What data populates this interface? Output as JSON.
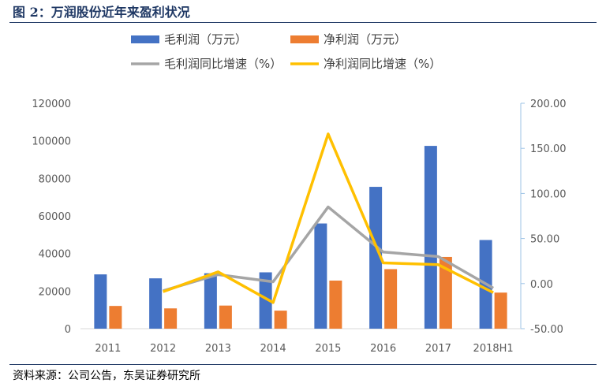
{
  "figure_title": "图 2：万润股份近年来盈利状况",
  "source_note": "资料来源：公司公告，东吴证券研究所",
  "chart_data": {
    "type": "bar",
    "categories": [
      "2011",
      "2012",
      "2013",
      "2014",
      "2015",
      "2016",
      "2017",
      "2018H1"
    ],
    "series": [
      {
        "name": "毛利润（万元）",
        "type": "bar",
        "axis": "left",
        "color": "#4472c4",
        "values": [
          28900,
          26800,
          29500,
          30000,
          56000,
          75500,
          97300,
          47200
        ]
      },
      {
        "name": "净利润（万元）",
        "type": "bar",
        "axis": "left",
        "color": "#ed7d31",
        "values": [
          12100,
          10800,
          12300,
          9600,
          25600,
          31700,
          38200,
          19200
        ]
      },
      {
        "name": "毛利润同比增速（%）",
        "type": "line",
        "axis": "right",
        "color": "#a5a5a5",
        "values": [
          null,
          -8,
          10,
          2,
          85,
          35,
          30,
          -5
        ]
      },
      {
        "name": "净利润同比增速（%）",
        "type": "line",
        "axis": "right",
        "color": "#ffc000",
        "values": [
          null,
          -9,
          13,
          -21,
          166,
          23,
          21,
          -10
        ]
      }
    ],
    "y_left": {
      "min": 0,
      "max": 120000,
      "ticks": [
        "0",
        "20000",
        "40000",
        "60000",
        "80000",
        "100000",
        "120000"
      ]
    },
    "y_right": {
      "min": -50,
      "max": 200,
      "ticks": [
        "-50.00",
        "0.00",
        "50.00",
        "100.00",
        "150.00",
        "200.00"
      ]
    },
    "legend_position": "top",
    "grid": false
  }
}
